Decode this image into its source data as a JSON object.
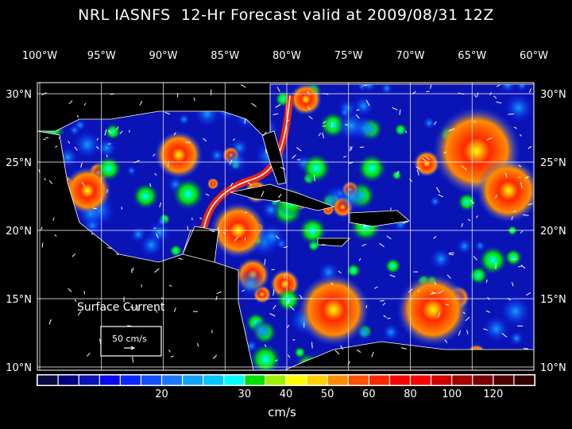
{
  "title": "NRL IASNFS  12-Hr Forecast valid at 2009/08/31 12Z",
  "map": {
    "lon_labels": [
      "100°W",
      "95°W",
      "90°W",
      "85°W",
      "80°W",
      "75°W",
      "70°W",
      "65°W",
      "60°W"
    ],
    "lon_values": [
      -100,
      -95,
      -90,
      -85,
      -80,
      -75,
      -70,
      -65,
      -60
    ],
    "lat_labels": [
      "30°N",
      "25°N",
      "20°N",
      "15°N",
      "10°N"
    ],
    "lat_values": [
      30,
      25,
      20,
      15,
      10
    ],
    "field": "Surface Current",
    "reference_vector": "50 cm/s"
  },
  "colorbar": {
    "unit": "cm/s",
    "colors": [
      "#0a0a40",
      "#00007a",
      "#0a14b4",
      "#0a0af0",
      "#0a28ff",
      "#1450ff",
      "#1e78ff",
      "#14a0ff",
      "#00c8ff",
      "#00ffff",
      "#00e000",
      "#a0f000",
      "#ffff00",
      "#ffd200",
      "#ff8c00",
      "#ff5000",
      "#ff2800",
      "#ff0000",
      "#ff0000",
      "#d00000",
      "#a00000",
      "#780000",
      "#500000",
      "#300000"
    ],
    "tick_labels": [
      "20",
      "30",
      "40",
      "50",
      "60",
      "80",
      "100",
      "120"
    ],
    "tick_after_swatch": [
      6,
      10,
      12,
      14,
      16,
      18,
      20,
      22
    ]
  }
}
